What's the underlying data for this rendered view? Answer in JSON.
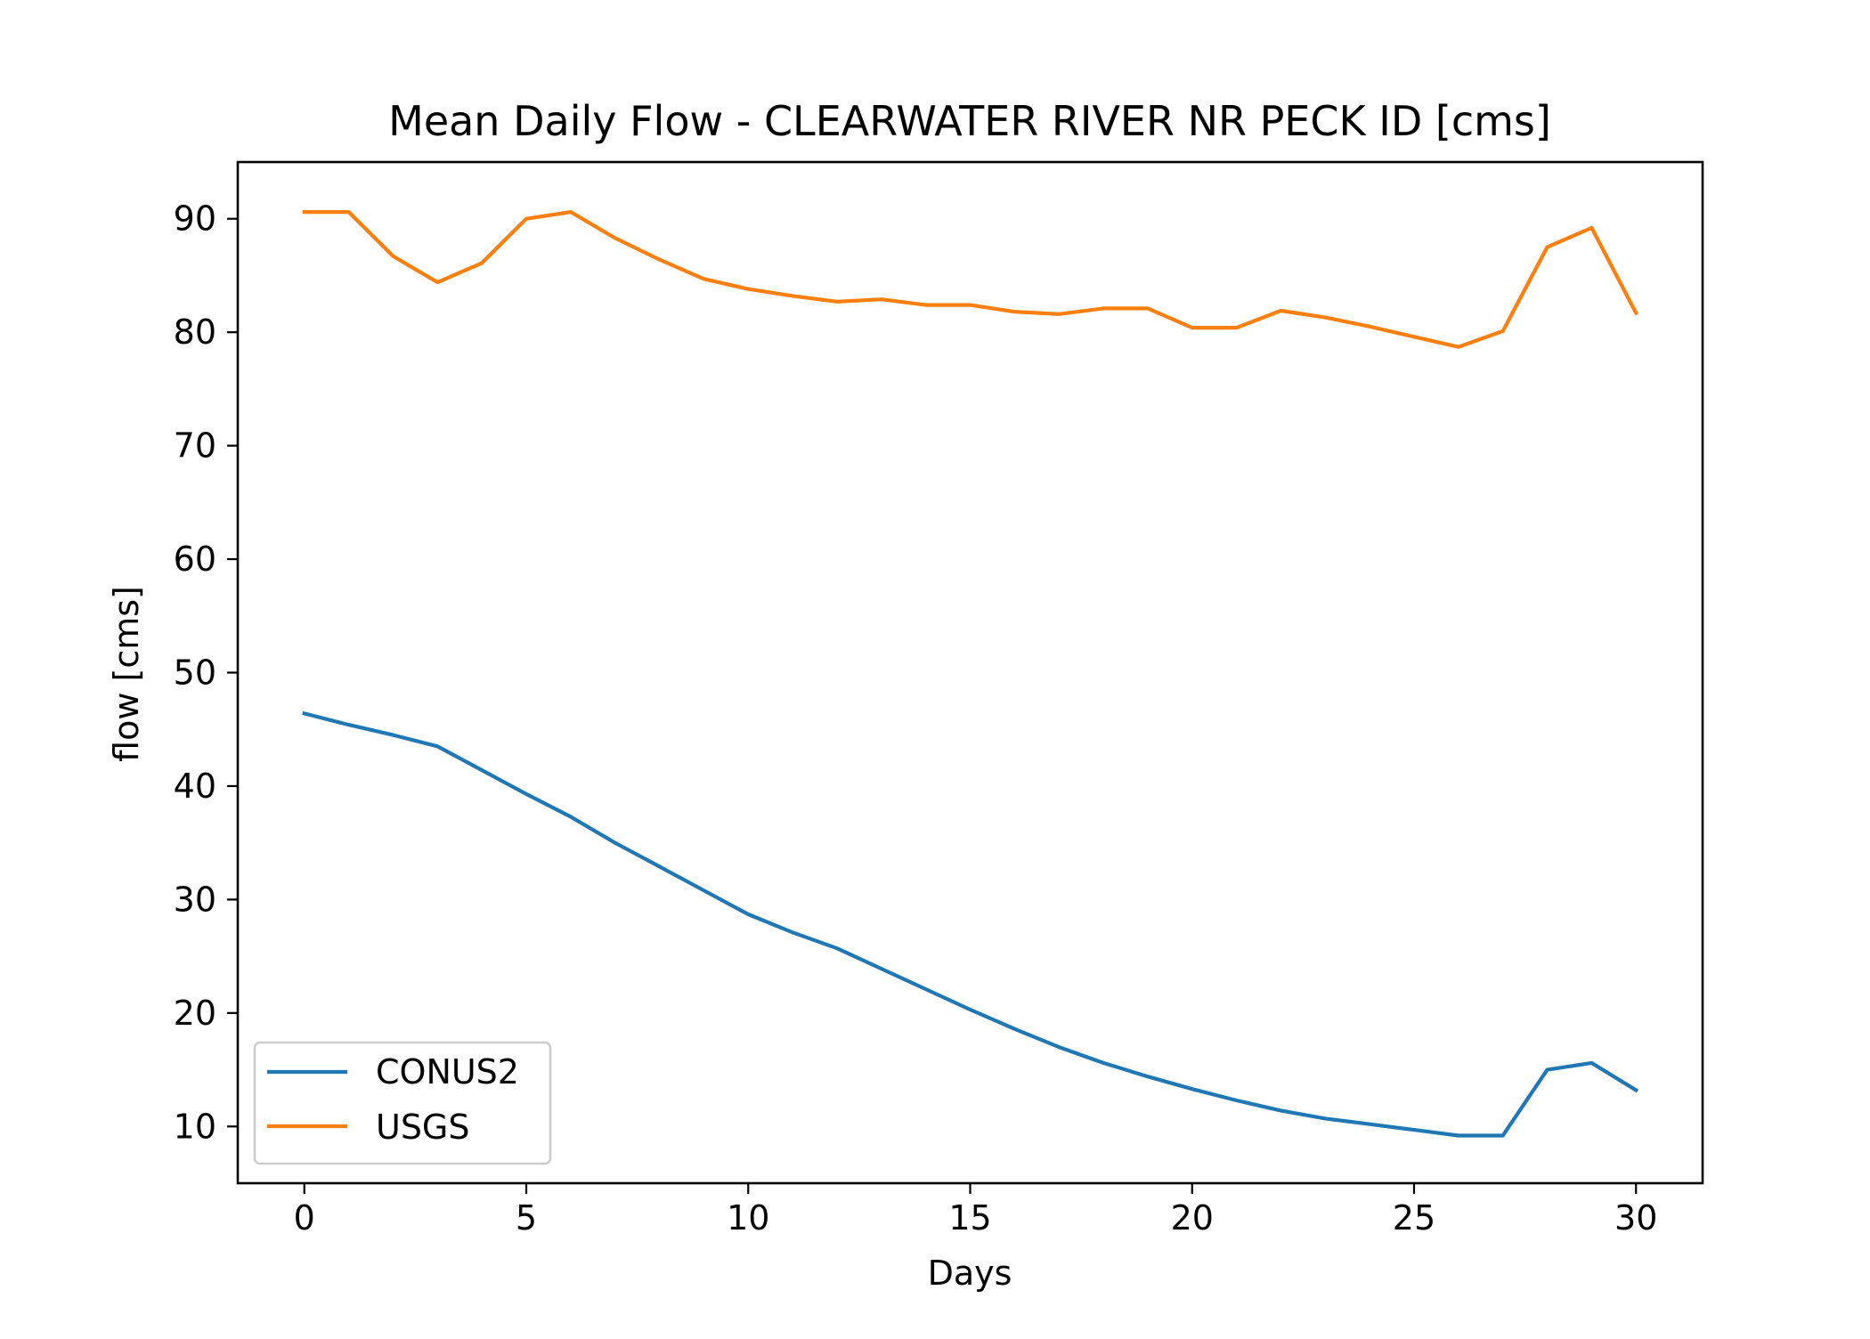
{
  "chart_data": {
    "type": "line",
    "title": "Mean Daily Flow - CLEARWATER RIVER NR PECK ID [cms]",
    "xlabel": "Days",
    "ylabel": "flow [cms]",
    "xlim": [
      -1.5,
      31.5
    ],
    "ylim": [
      5,
      95
    ],
    "xticks": [
      0,
      5,
      10,
      15,
      20,
      25,
      30
    ],
    "yticks": [
      10,
      20,
      30,
      40,
      50,
      60,
      70,
      80,
      90
    ],
    "grid": false,
    "legend": "lower-left",
    "x": [
      0,
      1,
      2,
      3,
      4,
      5,
      6,
      7,
      8,
      9,
      10,
      11,
      12,
      13,
      14,
      15,
      16,
      17,
      18,
      19,
      20,
      21,
      22,
      23,
      24,
      25,
      26,
      27,
      28,
      29,
      30
    ],
    "series": [
      {
        "name": "CONUS2",
        "color": "#1f77b4",
        "values": [
          46.4,
          45.4,
          44.5,
          43.5,
          41.4,
          39.3,
          37.3,
          35.0,
          32.9,
          30.8,
          28.7,
          27.1,
          25.7,
          23.9,
          22.1,
          20.3,
          18.6,
          17.0,
          15.6,
          14.4,
          13.3,
          12.3,
          11.4,
          10.7,
          10.2,
          9.7,
          9.2,
          9.2,
          15.0,
          15.6,
          13.2
        ]
      },
      {
        "name": "USGS",
        "color": "#ff7f0e",
        "values": [
          90.6,
          90.6,
          86.7,
          84.4,
          86.1,
          90.0,
          90.6,
          88.3,
          86.4,
          84.7,
          83.8,
          83.2,
          82.7,
          82.9,
          82.4,
          82.4,
          81.8,
          81.6,
          82.1,
          82.1,
          80.4,
          80.4,
          81.9,
          81.3,
          80.5,
          79.6,
          78.7,
          80.1,
          87.5,
          89.2,
          81.7
        ]
      }
    ]
  }
}
